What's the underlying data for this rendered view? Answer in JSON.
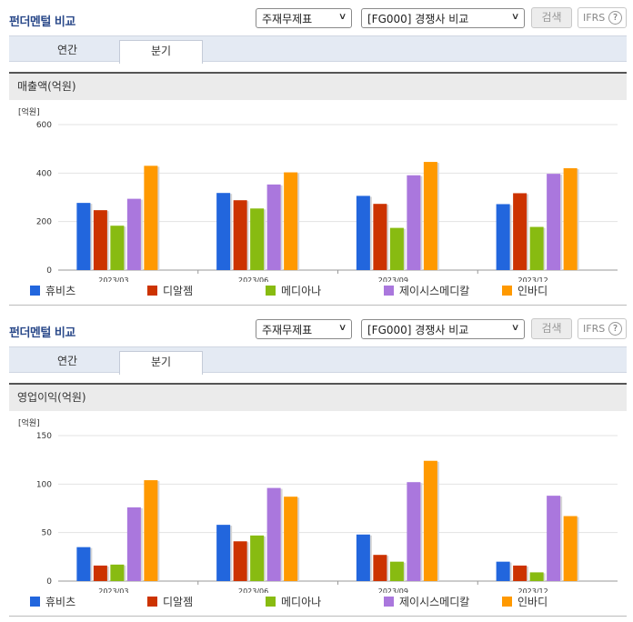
{
  "panels": [
    {
      "title": "펀더멘털 비교",
      "select1": "주재무제표",
      "select2": "[FG000] 경쟁사 비교",
      "search_btn": "검색",
      "ifrs_btn": "IFRS",
      "tabs": [
        "연간",
        "분기"
      ],
      "active_tab": "분기",
      "section_title": "매출액(억원)"
    },
    {
      "title": "펀더멘털 비교",
      "select1": "주재무제표",
      "select2": "[FG000] 경쟁사 비교",
      "search_btn": "검색",
      "ifrs_btn": "IFRS",
      "tabs": [
        "연간",
        "분기"
      ],
      "active_tab": "분기",
      "section_title": "영업이익(억원)"
    }
  ],
  "chart_data": [
    {
      "type": "bar",
      "unit_label": "[억원]",
      "categories": [
        "2023/03",
        "2023/06",
        "2023/09",
        "2023/12"
      ],
      "ylim": [
        0,
        600
      ],
      "yticks": [
        0,
        200,
        400,
        600
      ],
      "grid": true,
      "legend_position": "bottom",
      "series": [
        {
          "name": "휴비츠",
          "color": "#2266dd",
          "values": [
            277,
            318,
            306,
            272
          ]
        },
        {
          "name": "디알젬",
          "color": "#cc3300",
          "values": [
            247,
            288,
            273,
            317
          ]
        },
        {
          "name": "메디아나",
          "color": "#88bb11",
          "values": [
            183,
            254,
            174,
            178
          ]
        },
        {
          "name": "제이시스메디칼",
          "color": "#aa77dd",
          "values": [
            294,
            353,
            391,
            397
          ]
        },
        {
          "name": "인바디",
          "color": "#ff9900",
          "values": [
            430,
            403,
            446,
            420
          ]
        }
      ]
    },
    {
      "type": "bar",
      "unit_label": "[억원]",
      "categories": [
        "2023/03",
        "2023/06",
        "2023/09",
        "2023/12"
      ],
      "ylim": [
        0,
        150
      ],
      "yticks": [
        0,
        50,
        100,
        150
      ],
      "grid": true,
      "legend_position": "bottom",
      "series": [
        {
          "name": "휴비츠",
          "color": "#2266dd",
          "values": [
            35,
            58,
            48,
            20
          ]
        },
        {
          "name": "디알젬",
          "color": "#cc3300",
          "values": [
            16,
            41,
            27,
            16
          ]
        },
        {
          "name": "메디아나",
          "color": "#88bb11",
          "values": [
            17,
            47,
            20,
            9
          ]
        },
        {
          "name": "제이시스메디칼",
          "color": "#aa77dd",
          "values": [
            76,
            96,
            102,
            88
          ]
        },
        {
          "name": "인바디",
          "color": "#ff9900",
          "values": [
            104,
            87,
            124,
            67
          ]
        }
      ]
    }
  ]
}
